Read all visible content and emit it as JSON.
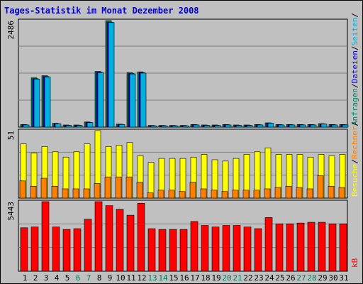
{
  "title": "Tages-Statistik im Monat Dezember 2008",
  "colors": {
    "background": "#c0c0c0",
    "grid": "#808080",
    "anfragen": "#008060",
    "dateien": "#0000cc",
    "seiten": "#00b0e0",
    "besuche": "#ffff00",
    "rechner": "#ff8000",
    "kb": "#ff0000",
    "weekend_label": "#008060",
    "day_label": "#000000",
    "title": "#0000cc"
  },
  "axis_max_labels": {
    "top": "2486",
    "middle": "51",
    "bottom": "5443"
  },
  "legend": {
    "top": [
      "Anfragen",
      "/",
      "Dateien",
      "/",
      "Seiten",
      "/"
    ],
    "middle": [
      "Besuche",
      "/",
      "Rechner",
      "/"
    ],
    "bottom": [
      "kB"
    ]
  },
  "chart_data": [
    {
      "type": "bar",
      "title": "Tages-Statistik im Monat Dezember 2008",
      "categories": [
        "1",
        "2",
        "3",
        "4",
        "5",
        "6",
        "7",
        "8",
        "9",
        "10",
        "11",
        "12",
        "13",
        "14",
        "15",
        "16",
        "17",
        "18",
        "19",
        "20",
        "21",
        "22",
        "23",
        "24",
        "25",
        "26",
        "27",
        "28",
        "29",
        "30",
        "31"
      ],
      "weekend_days": [
        "6",
        "7",
        "13",
        "14",
        "20",
        "21",
        "27",
        "28"
      ],
      "ylim": [
        0,
        2486
      ],
      "series": [
        {
          "name": "Anfragen",
          "values": [
            60,
            1150,
            1200,
            90,
            50,
            50,
            120,
            1300,
            2486,
            70,
            1270,
            1290,
            40,
            40,
            40,
            40,
            60,
            50,
            50,
            60,
            50,
            50,
            60,
            100,
            60,
            60,
            60,
            60,
            80,
            60,
            60
          ]
        },
        {
          "name": "Dateien",
          "values": [
            55,
            1130,
            1180,
            80,
            45,
            45,
            110,
            1280,
            2450,
            65,
            1250,
            1270,
            35,
            35,
            35,
            35,
            55,
            45,
            45,
            55,
            45,
            45,
            55,
            95,
            55,
            55,
            55,
            55,
            75,
            55,
            55
          ]
        },
        {
          "name": "Seiten",
          "values": [
            50,
            1120,
            1170,
            75,
            40,
            40,
            105,
            1270,
            2440,
            60,
            1240,
            1260,
            30,
            30,
            30,
            30,
            50,
            40,
            40,
            50,
            40,
            40,
            50,
            90,
            50,
            50,
            50,
            50,
            70,
            50,
            50
          ]
        }
      ]
    },
    {
      "type": "bar",
      "categories": [
        "1",
        "2",
        "3",
        "4",
        "5",
        "6",
        "7",
        "8",
        "9",
        "10",
        "11",
        "12",
        "13",
        "14",
        "15",
        "16",
        "17",
        "18",
        "19",
        "20",
        "21",
        "22",
        "23",
        "24",
        "25",
        "26",
        "27",
        "28",
        "29",
        "30",
        "31"
      ],
      "ylim": [
        0,
        51
      ],
      "series": [
        {
          "name": "Besuche",
          "values": [
            41,
            34,
            39,
            35,
            31,
            35,
            41,
            51,
            39,
            40,
            42,
            32,
            27,
            30,
            30,
            30,
            31,
            33,
            29,
            28,
            30,
            33,
            35,
            38,
            33,
            33,
            33,
            31,
            33,
            32,
            33
          ]
        },
        {
          "name": "Rechner",
          "values": [
            13,
            9,
            15,
            9,
            7,
            7,
            7,
            11,
            16,
            16,
            16,
            12,
            4,
            6,
            6,
            5,
            12,
            7,
            6,
            5,
            6,
            6,
            6,
            7,
            8,
            9,
            8,
            7,
            17,
            9,
            8
          ]
        }
      ]
    },
    {
      "type": "bar",
      "categories": [
        "1",
        "2",
        "3",
        "4",
        "5",
        "6",
        "7",
        "8",
        "9",
        "10",
        "11",
        "12",
        "13",
        "14",
        "15",
        "16",
        "17",
        "18",
        "19",
        "20",
        "21",
        "22",
        "23",
        "24",
        "25",
        "26",
        "27",
        "28",
        "29",
        "30",
        "31"
      ],
      "ylim": [
        0,
        5443
      ],
      "series": [
        {
          "name": "kB",
          "values": [
            3400,
            3460,
            5443,
            3460,
            3270,
            3330,
            4070,
            5443,
            5130,
            4850,
            4380,
            5320,
            3330,
            3270,
            3270,
            3270,
            3890,
            3580,
            3460,
            3580,
            3580,
            3460,
            3330,
            4200,
            3710,
            3710,
            3770,
            3830,
            3830,
            3710,
            3710
          ]
        }
      ]
    }
  ]
}
